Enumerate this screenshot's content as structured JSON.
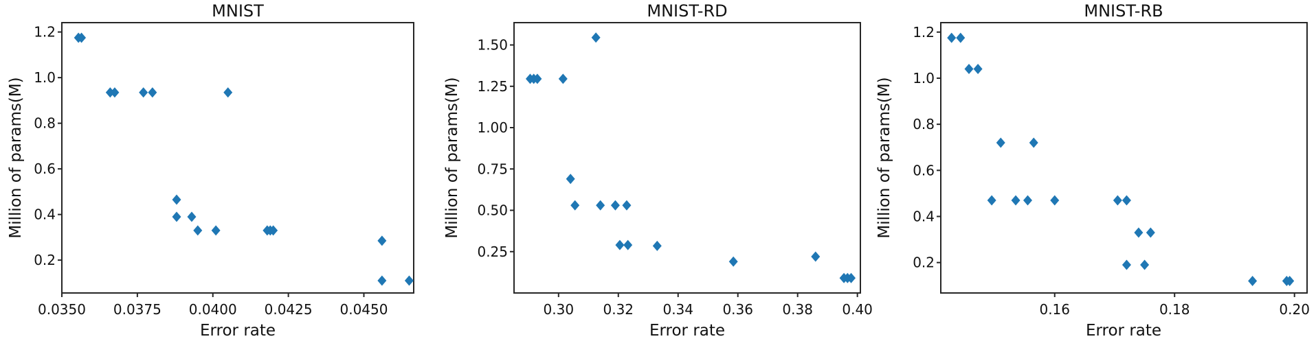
{
  "figure": {
    "background": "#ffffff",
    "marker_color": "#1f77b4",
    "axis_color": "#262626",
    "text_color": "#111111"
  },
  "chart_data": [
    {
      "type": "scatter",
      "title": "MNIST",
      "xlabel": "Error rate",
      "ylabel": "Million of params(M)",
      "marker": "diamond-icon",
      "grid": false,
      "legend": "none",
      "xlim": [
        0.035,
        0.04665
      ],
      "ylim": [
        0.056,
        1.241
      ],
      "xticks": {
        "values": [
          0.035,
          0.0375,
          0.04,
          0.0425,
          0.045
        ],
        "labels": [
          "0.0350",
          "0.0375",
          "0.0400",
          "0.0425",
          "0.0450"
        ]
      },
      "yticks": {
        "values": [
          0.2,
          0.4,
          0.6,
          0.8,
          1.0,
          1.2
        ],
        "labels": [
          "0.2",
          "0.4",
          "0.6",
          "0.8",
          "1.0",
          "1.2"
        ]
      },
      "points": [
        [
          0.03555,
          1.175
        ],
        [
          0.03565,
          1.175
        ],
        [
          0.0366,
          0.935
        ],
        [
          0.03675,
          0.935
        ],
        [
          0.0377,
          0.935
        ],
        [
          0.038,
          0.935
        ],
        [
          0.0405,
          0.935
        ],
        [
          0.0388,
          0.465
        ],
        [
          0.0388,
          0.39
        ],
        [
          0.0393,
          0.39
        ],
        [
          0.0395,
          0.33
        ],
        [
          0.0401,
          0.33
        ],
        [
          0.0418,
          0.33
        ],
        [
          0.0419,
          0.33
        ],
        [
          0.042,
          0.33
        ],
        [
          0.0456,
          0.285
        ],
        [
          0.0456,
          0.11
        ],
        [
          0.0465,
          0.11
        ]
      ]
    },
    {
      "type": "scatter",
      "title": "MNIST-RD",
      "xlabel": "Error rate",
      "ylabel": "Million of params(M)",
      "marker": "diamond-icon",
      "grid": false,
      "legend": "none",
      "xlim": [
        0.2851,
        0.401
      ],
      "ylim": [
        0.0,
        1.635
      ],
      "xticks": {
        "values": [
          0.3,
          0.32,
          0.34,
          0.36,
          0.38,
          0.4
        ],
        "labels": [
          "0.30",
          "0.32",
          "0.34",
          "0.36",
          "0.38",
          "0.40"
        ]
      },
      "yticks": {
        "values": [
          0.25,
          0.5,
          0.75,
          1.0,
          1.25,
          1.5
        ],
        "labels": [
          "0.25",
          "0.50",
          "0.75",
          "1.00",
          "1.25",
          "1.50"
        ]
      },
      "points": [
        [
          0.2905,
          1.295
        ],
        [
          0.2917,
          1.295
        ],
        [
          0.2929,
          1.295
        ],
        [
          0.3015,
          1.295
        ],
        [
          0.3125,
          1.545
        ],
        [
          0.304,
          0.69
        ],
        [
          0.3055,
          0.53
        ],
        [
          0.314,
          0.53
        ],
        [
          0.319,
          0.53
        ],
        [
          0.3228,
          0.53
        ],
        [
          0.3205,
          0.29
        ],
        [
          0.3232,
          0.29
        ],
        [
          0.333,
          0.285
        ],
        [
          0.3585,
          0.19
        ],
        [
          0.386,
          0.22
        ],
        [
          0.3955,
          0.09
        ],
        [
          0.3967,
          0.09
        ],
        [
          0.3979,
          0.09
        ]
      ]
    },
    {
      "type": "scatter",
      "title": "MNIST-RB",
      "xlabel": "Error rate",
      "ylabel": "Million of params(M)",
      "marker": "diamond-icon",
      "grid": false,
      "legend": "none",
      "xlim": [
        0.141,
        0.2021
      ],
      "ylim": [
        0.068,
        1.241
      ],
      "xticks": {
        "values": [
          0.16,
          0.18,
          0.2
        ],
        "labels": [
          "0.16",
          "0.18",
          "0.20"
        ]
      },
      "yticks": {
        "values": [
          0.2,
          0.4,
          0.6,
          0.8,
          1.0,
          1.2
        ],
        "labels": [
          "0.2",
          "0.4",
          "0.6",
          "0.8",
          "1.0",
          "1.2"
        ]
      },
      "points": [
        [
          0.1428,
          1.175
        ],
        [
          0.1443,
          1.175
        ],
        [
          0.1457,
          1.04
        ],
        [
          0.1472,
          1.04
        ],
        [
          0.151,
          0.72
        ],
        [
          0.1565,
          0.72
        ],
        [
          0.1495,
          0.47
        ],
        [
          0.1535,
          0.47
        ],
        [
          0.1555,
          0.47
        ],
        [
          0.16,
          0.47
        ],
        [
          0.1705,
          0.47
        ],
        [
          0.172,
          0.47
        ],
        [
          0.174,
          0.33
        ],
        [
          0.176,
          0.33
        ],
        [
          0.172,
          0.19
        ],
        [
          0.175,
          0.19
        ],
        [
          0.193,
          0.12
        ],
        [
          0.1987,
          0.12
        ],
        [
          0.1992,
          0.12
        ]
      ]
    }
  ]
}
